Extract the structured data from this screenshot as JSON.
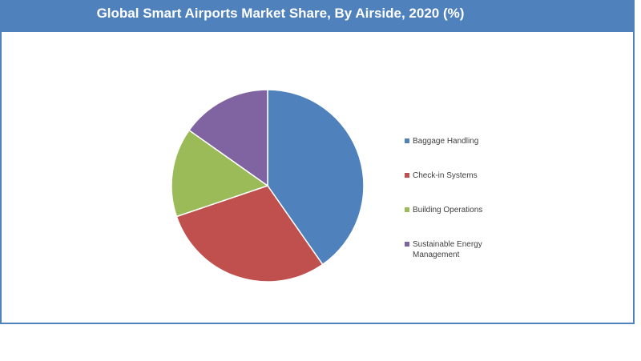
{
  "title": "Global Smart Airports Market Share, By Airside, 2020 (%)",
  "chart_data": {
    "type": "pie",
    "title": "Global Smart Airports Market Share, By Airside, 2020 (%)",
    "categories": [
      "Baggage Handling",
      "Check-in Systems",
      "Building Operations",
      "Sustainable Energy Management"
    ],
    "values": [
      40.3,
      29.5,
      15.0,
      15.2
    ],
    "colors": [
      "#4f81bd",
      "#c0504d",
      "#9bbb59",
      "#8064a2"
    ],
    "legend_position": "right"
  }
}
